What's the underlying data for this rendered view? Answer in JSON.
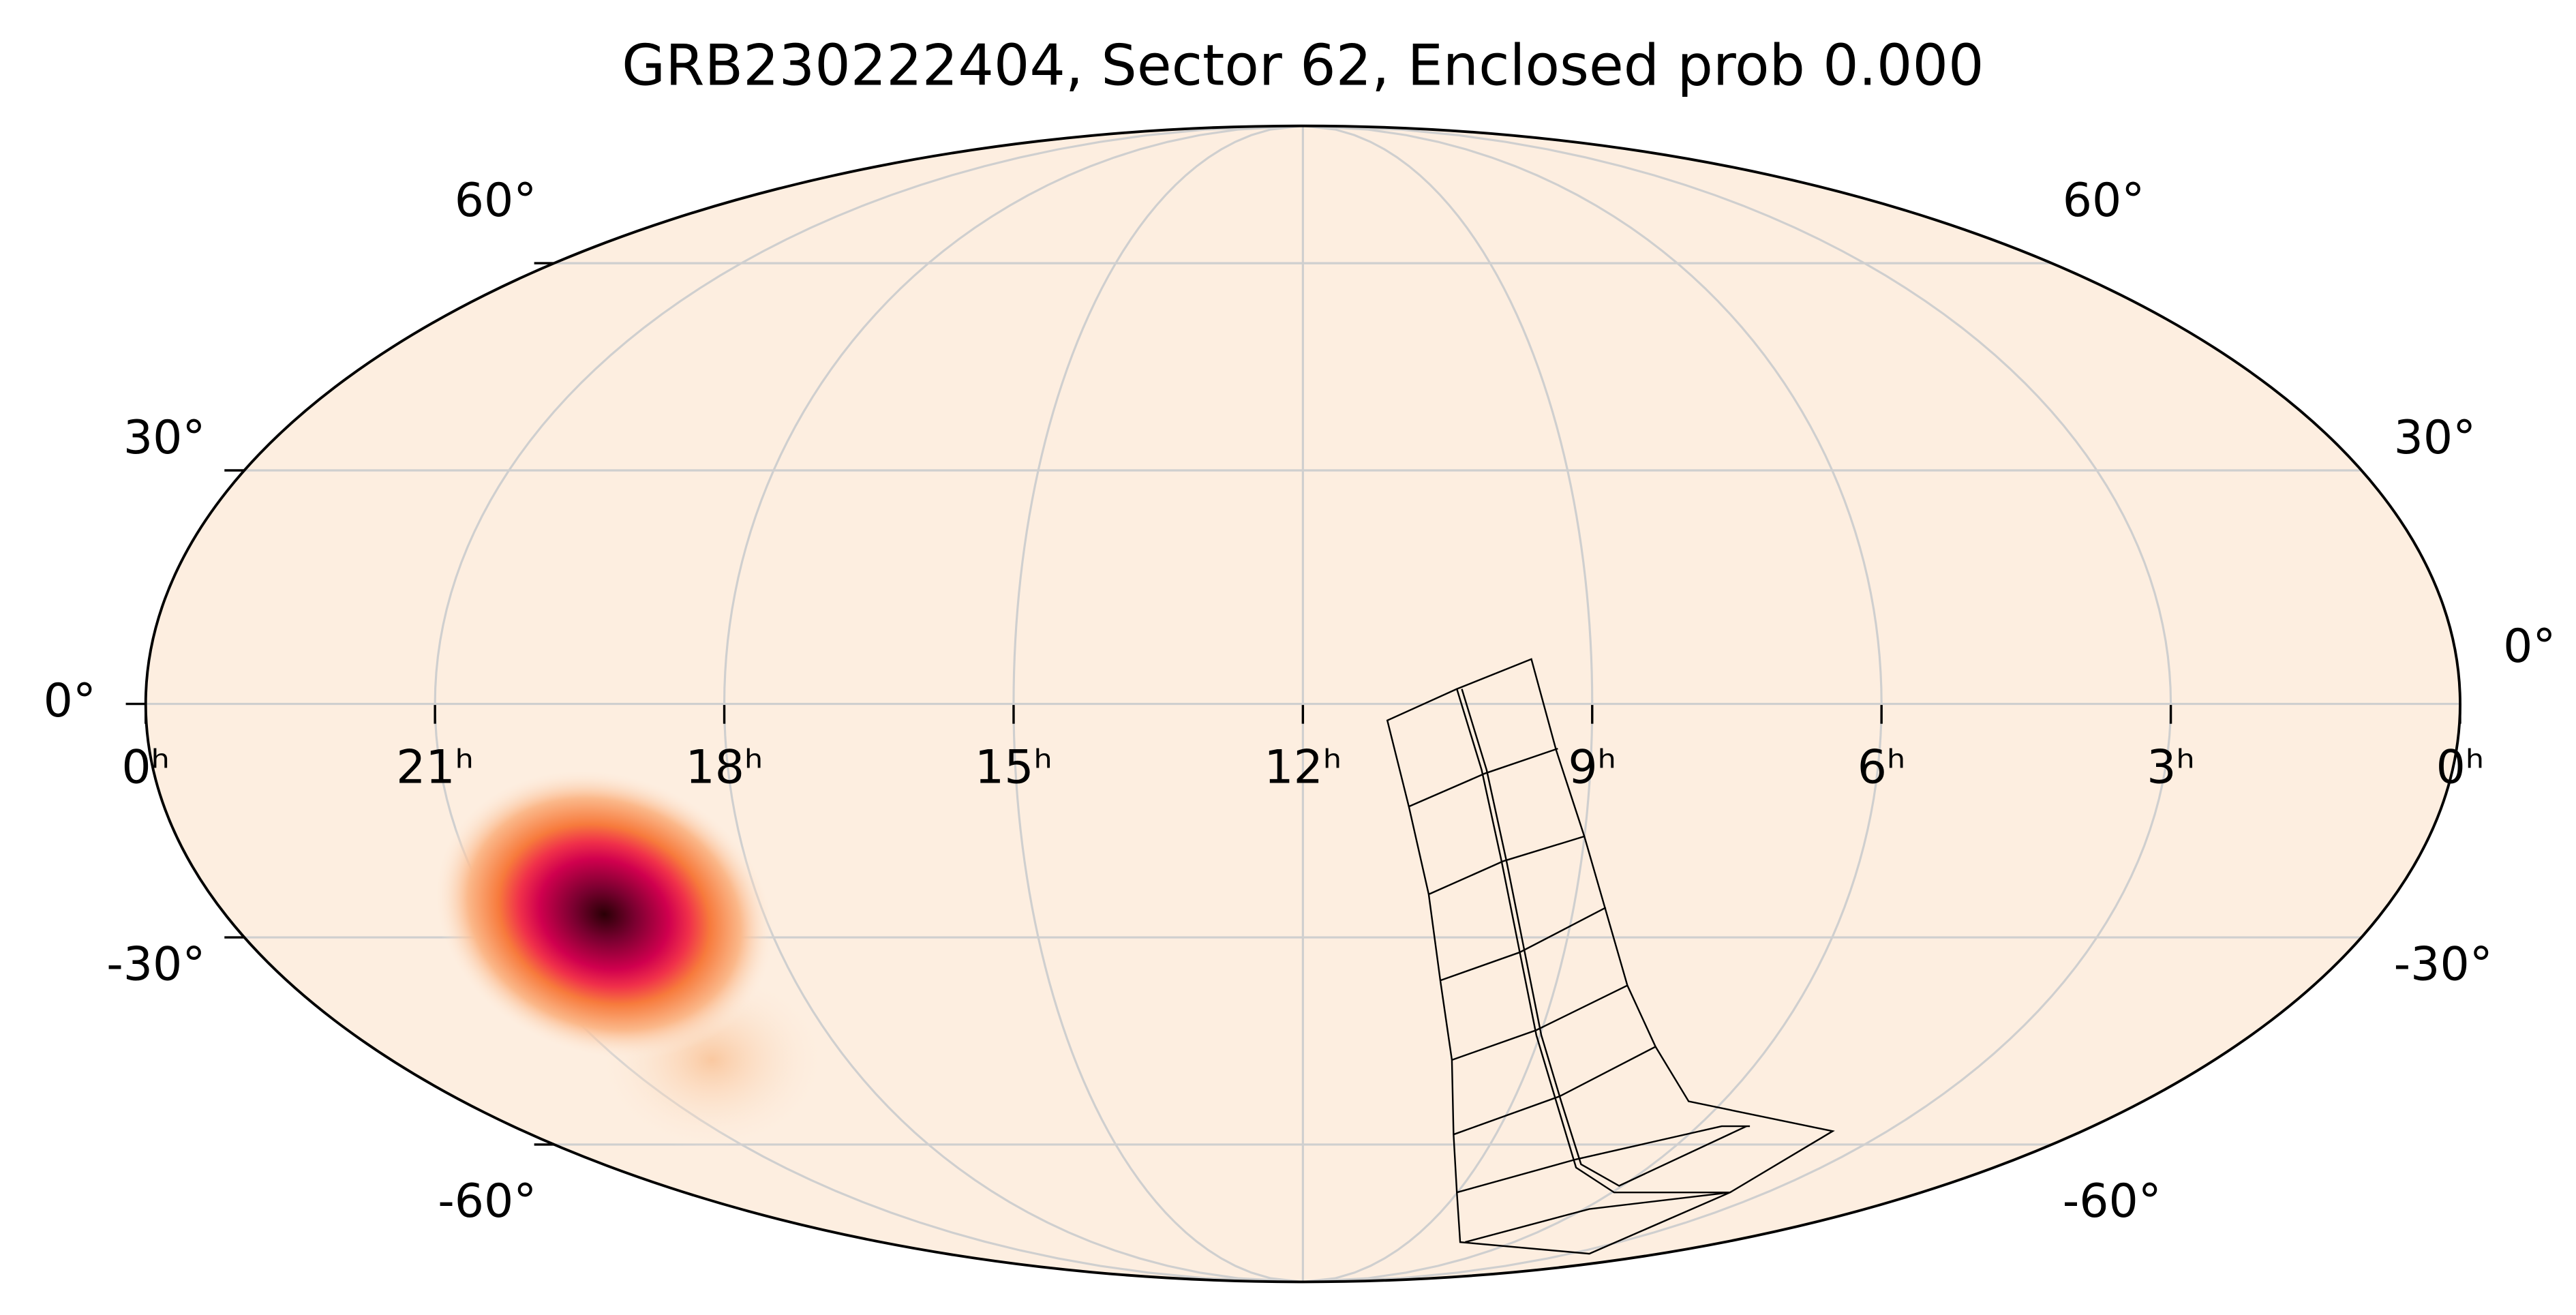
{
  "chart_data": {
    "type": "mollweide",
    "title": "GRB230222404, Sector 62, Enclosed prob 0.000",
    "xlim": [
      24,
      0
    ],
    "ylim": [
      -90,
      90
    ],
    "xticks": [
      {
        "value": 24,
        "label": "0ʰ"
      },
      {
        "value": 21,
        "label": "21ʰ"
      },
      {
        "value": 18,
        "label": "18ʰ"
      },
      {
        "value": 15,
        "label": "15ʰ"
      },
      {
        "value": 12,
        "label": "12ʰ"
      },
      {
        "value": 9,
        "label": "9ʰ"
      },
      {
        "value": 6,
        "label": "6ʰ"
      },
      {
        "value": 3,
        "label": "3ʰ"
      },
      {
        "value": 0,
        "label": "0ʰ"
      }
    ],
    "yticks": [
      {
        "value": -60,
        "label": "-60°"
      },
      {
        "value": -30,
        "label": "-30°"
      },
      {
        "value": 0,
        "label": "0°"
      },
      {
        "value": 30,
        "label": "30°"
      },
      {
        "value": 60,
        "label": "60°"
      }
    ],
    "grid": true
  }
}
